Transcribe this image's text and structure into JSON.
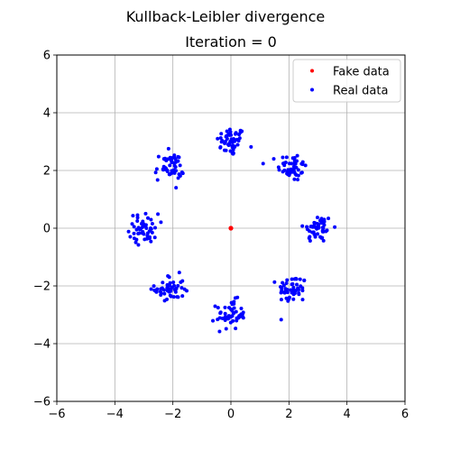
{
  "figure": {
    "suptitle": "Kullback-Leibler divergence",
    "title": "Iteration = 0"
  },
  "chart_data": {
    "type": "scatter",
    "title": "Iteration = 0",
    "xlim": [
      -6,
      6
    ],
    "ylim": [
      -6,
      6
    ],
    "xticks": [
      -6,
      -4,
      -2,
      0,
      2,
      4,
      6
    ],
    "yticks": [
      -6,
      -4,
      -2,
      0,
      2,
      4,
      6
    ],
    "grid": true,
    "legend_position": "top-right",
    "series": [
      {
        "name": "Fake data",
        "color": "#ff0000",
        "marker": "dot",
        "clusters": [
          {
            "center": [
              0,
              0
            ],
            "spread": 0.0,
            "count": 1
          }
        ]
      },
      {
        "name": "Real data",
        "color": "#0000ff",
        "marker": "dot",
        "clusters": [
          {
            "center": [
              0,
              3
            ],
            "spread": 0.25,
            "count": 50
          },
          {
            "center": [
              2.12,
              2.12
            ],
            "spread": 0.25,
            "count": 50
          },
          {
            "center": [
              3,
              0
            ],
            "spread": 0.25,
            "count": 50
          },
          {
            "center": [
              2.12,
              -2.12
            ],
            "spread": 0.25,
            "count": 50
          },
          {
            "center": [
              0,
              -3
            ],
            "spread": 0.25,
            "count": 50
          },
          {
            "center": [
              -2.12,
              -2.12
            ],
            "spread": 0.25,
            "count": 50
          },
          {
            "center": [
              -3,
              0
            ],
            "spread": 0.25,
            "count": 50
          },
          {
            "center": [
              -2.12,
              2.12
            ],
            "spread": 0.25,
            "count": 50
          }
        ]
      }
    ]
  }
}
